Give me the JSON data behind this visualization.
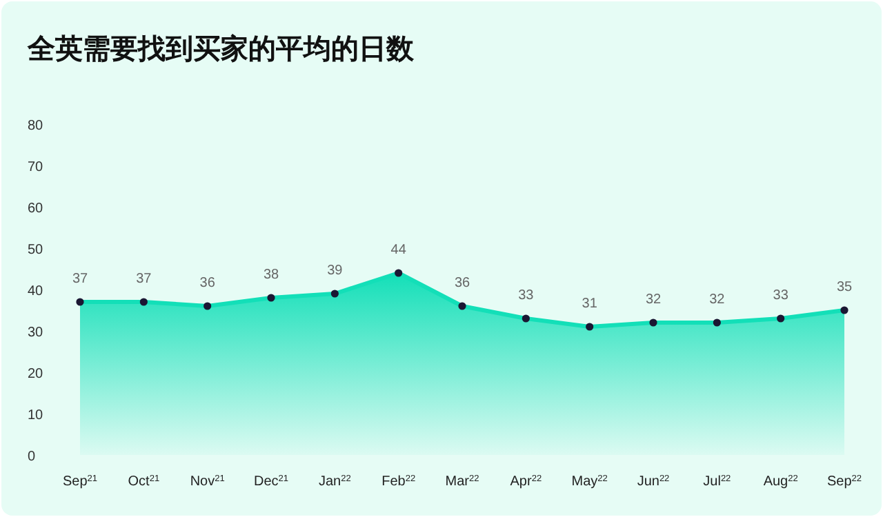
{
  "chart_data": {
    "type": "area",
    "title": "全英需要找到买家的平均的日数",
    "categories": [
      "Sep$^{21}$",
      "Oct$^{21}$",
      "Nov$^{21}$",
      "Dec$^{21}$",
      "Jan$^{22}$",
      "Feb$^{22}$",
      "Mar$^{22}$",
      "Apr$^{22}$",
      "May$^{22}$",
      "Jun$^{22}$",
      "Jul$^{22}$",
      "Aug$^{22}$",
      "Sep$^{22}$"
    ],
    "series": [
      {
        "color": "#13dfb8",
        "values": [
          37,
          37,
          36,
          38,
          39,
          44,
          36,
          33,
          31,
          32,
          32,
          33,
          35
        ]
      }
    ],
    "ylim": [
      0,
      80
    ],
    "yticks": [
      0,
      10,
      20,
      30,
      40,
      50,
      60,
      70,
      80
    ],
    "marker": "circle",
    "line_style": "solid",
    "data_labels": true
  }
}
